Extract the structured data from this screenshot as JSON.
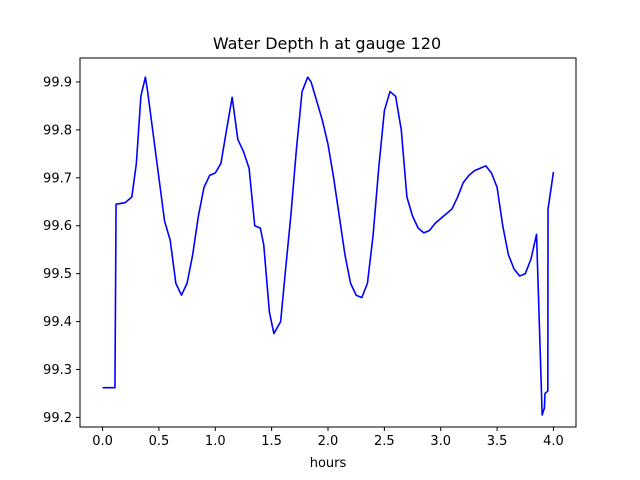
{
  "chart_data": {
    "type": "line",
    "title": "Water Depth h at gauge 120",
    "xlabel": "hours",
    "ylabel": "",
    "xlim": [
      -0.2,
      4.2
    ],
    "ylim": [
      99.18,
      99.95
    ],
    "xticks": [
      0.0,
      0.5,
      1.0,
      1.5,
      2.0,
      2.5,
      3.0,
      3.5,
      4.0
    ],
    "xtick_labels": [
      "0.0",
      "0.5",
      "1.0",
      "1.5",
      "2.0",
      "2.5",
      "3.0",
      "3.5",
      "4.0"
    ],
    "yticks": [
      99.2,
      99.3,
      99.4,
      99.5,
      99.6,
      99.7,
      99.8,
      99.9
    ],
    "ytick_labels": [
      "99.2",
      "99.3",
      "99.4",
      "99.5",
      "99.6",
      "99.7",
      "99.8",
      "99.9"
    ],
    "grid": false,
    "series": [
      {
        "color": "#0000ff",
        "x": [
          0.0,
          0.11,
          0.12,
          0.2,
          0.26,
          0.3,
          0.34,
          0.38,
          0.4,
          0.45,
          0.5,
          0.55,
          0.6,
          0.65,
          0.7,
          0.75,
          0.8,
          0.85,
          0.9,
          0.95,
          1.0,
          1.05,
          1.1,
          1.15,
          1.2,
          1.25,
          1.3,
          1.35,
          1.4,
          1.43,
          1.48,
          1.52,
          1.58,
          1.62,
          1.67,
          1.72,
          1.77,
          1.82,
          1.85,
          1.9,
          1.95,
          2.0,
          2.05,
          2.1,
          2.15,
          2.2,
          2.25,
          2.3,
          2.35,
          2.4,
          2.45,
          2.5,
          2.55,
          2.6,
          2.65,
          2.7,
          2.75,
          2.8,
          2.85,
          2.9,
          2.95,
          3.0,
          3.05,
          3.1,
          3.15,
          3.2,
          3.25,
          3.3,
          3.35,
          3.4,
          3.45,
          3.5,
          3.55,
          3.6,
          3.65,
          3.7,
          3.75,
          3.8,
          3.85,
          3.9,
          3.92,
          3.925,
          3.95,
          3.952,
          4.0
        ],
        "y": [
          99.262,
          99.262,
          99.645,
          99.648,
          99.66,
          99.73,
          99.87,
          99.91,
          99.88,
          99.79,
          99.7,
          99.61,
          99.57,
          99.48,
          99.455,
          99.48,
          99.54,
          99.62,
          99.68,
          99.705,
          99.71,
          99.73,
          99.8,
          99.868,
          99.78,
          99.755,
          99.72,
          99.6,
          99.595,
          99.56,
          99.42,
          99.375,
          99.4,
          99.5,
          99.62,
          99.76,
          99.88,
          99.91,
          99.9,
          99.86,
          99.82,
          99.77,
          99.7,
          99.62,
          99.54,
          99.48,
          99.455,
          99.45,
          99.48,
          99.58,
          99.72,
          99.84,
          99.88,
          99.87,
          99.8,
          99.66,
          99.62,
          99.595,
          99.585,
          99.59,
          99.605,
          99.615,
          99.625,
          99.635,
          99.66,
          99.69,
          99.705,
          99.715,
          99.72,
          99.725,
          99.71,
          99.68,
          99.6,
          99.54,
          99.51,
          99.495,
          99.5,
          99.53,
          99.582,
          99.205,
          99.22,
          99.25,
          99.255,
          99.635,
          99.712
        ]
      }
    ]
  }
}
